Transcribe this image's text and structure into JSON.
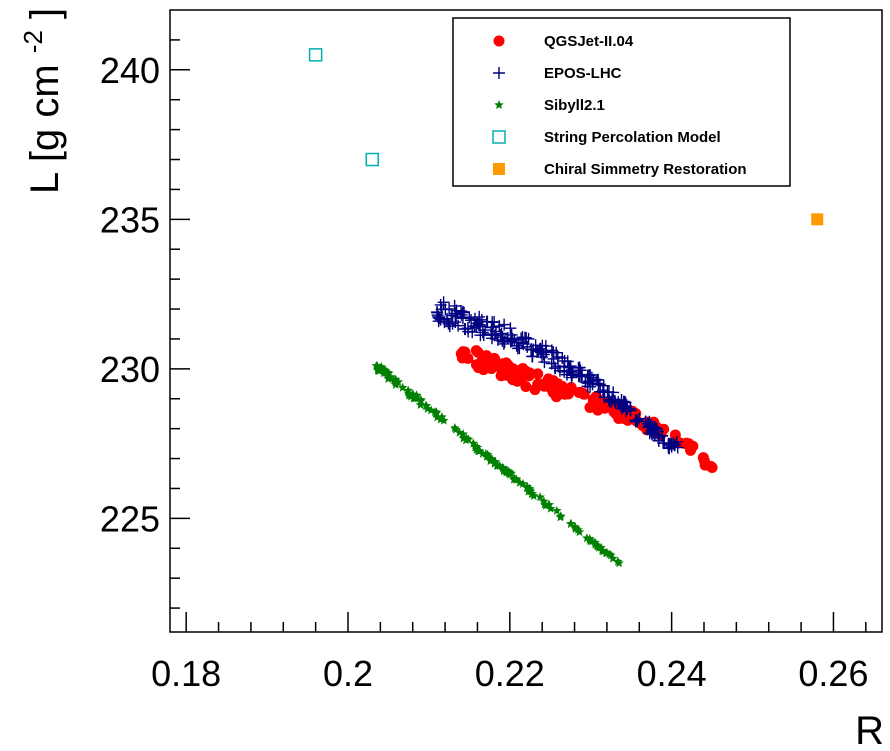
{
  "chart_data": {
    "type": "scatter",
    "xlabel": "R",
    "ylabel": "L [g cm",
    "ylabel_sup": "-2",
    "xlim": [
      0.178,
      0.266
    ],
    "ylim": [
      221.2,
      242.0
    ],
    "x_ticks": [
      0.18,
      0.2,
      0.22,
      0.24,
      0.26
    ],
    "x_tick_labels": [
      "0.18",
      "0.2",
      "0.22",
      "0.24",
      "0.26"
    ],
    "y_ticks": [
      225,
      230,
      235,
      240
    ],
    "y_tick_labels": [
      "225",
      "230",
      "235",
      "240"
    ],
    "grid": false,
    "legend_position": "top-right",
    "series": [
      {
        "name": "QGSJet-II.04",
        "marker": "circle",
        "color": "#ff0000",
        "trend_x": [
          0.214,
          0.217,
          0.22,
          0.223,
          0.226,
          0.229,
          0.232,
          0.235,
          0.238,
          0.241,
          0.243,
          0.245
        ],
        "trend_y": [
          230.5,
          230.2,
          229.9,
          229.6,
          229.3,
          229.0,
          228.7,
          228.4,
          228.0,
          227.6,
          227.2,
          226.7
        ],
        "x_span": [
          0.214,
          0.245
        ],
        "spread": 0.35,
        "count": 130
      },
      {
        "name": "EPOS-LHC",
        "marker": "plus",
        "color": "#000080",
        "trend_x": [
          0.211,
          0.215,
          0.219,
          0.222,
          0.225,
          0.228,
          0.231,
          0.234,
          0.237,
          0.24
        ],
        "trend_y": [
          231.9,
          231.6,
          231.2,
          230.8,
          230.4,
          229.9,
          229.4,
          228.8,
          228.1,
          227.4
        ],
        "x_span": [
          0.211,
          0.241
        ],
        "spread": 0.4,
        "count": 230
      },
      {
        "name": "Sibyll2.1",
        "marker": "star",
        "color": "#008000",
        "trend_x": [
          0.2035,
          0.2335
        ],
        "trend_y": [
          230.1,
          223.5
        ],
        "x_span": [
          0.2035,
          0.2335
        ],
        "spread": 0.12,
        "count": 150
      },
      {
        "name": "String Percolation Model",
        "marker": "open-square",
        "color": "#00b0b0",
        "points": [
          [
            0.196,
            240.5
          ],
          [
            0.203,
            237.0
          ]
        ]
      },
      {
        "name": "Chiral Simmetry Restoration",
        "marker": "filled-square",
        "color": "#ff9900",
        "points": [
          [
            0.258,
            235.0
          ]
        ]
      }
    ]
  }
}
